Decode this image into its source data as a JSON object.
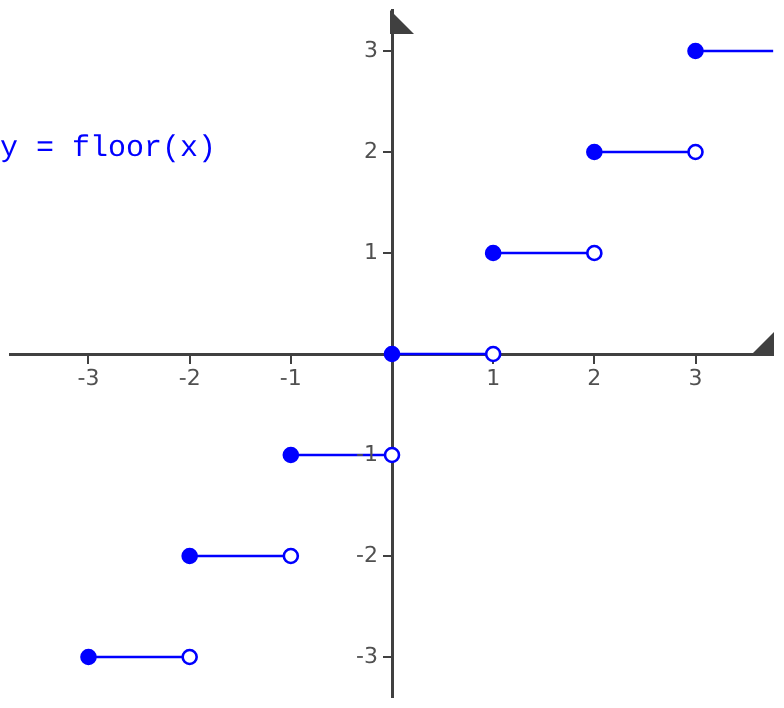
{
  "chart_data": {
    "type": "line",
    "xlim": [
      -3.77,
      3.77
    ],
    "ylim": [
      -3.4,
      3.4
    ],
    "xticks": [
      -3,
      -2,
      -1,
      1,
      2,
      3
    ],
    "yticks": [
      -3,
      -2,
      -1,
      1,
      2,
      3
    ],
    "grid": false,
    "legend": false,
    "marker": "circle",
    "line_style": "solid",
    "annotations": [
      "y = floor(x)"
    ],
    "series": [
      {
        "color": "#0000ff",
        "x": [
          -3,
          -2
        ],
        "values": [
          -3,
          -3
        ]
      },
      {
        "color": "#0000ff",
        "x": [
          -2,
          -1
        ],
        "values": [
          -2,
          -2
        ]
      },
      {
        "color": "#0000ff",
        "x": [
          -1,
          0
        ],
        "values": [
          -1,
          -1
        ]
      },
      {
        "color": "#0000ff",
        "x": [
          0,
          1
        ],
        "values": [
          0,
          0
        ]
      },
      {
        "color": "#0000ff",
        "x": [
          1,
          2
        ],
        "values": [
          1,
          1
        ]
      },
      {
        "color": "#0000ff",
        "x": [
          2,
          3
        ],
        "values": [
          2,
          2
        ]
      },
      {
        "color": "#0000ff",
        "x": [
          3,
          3.77
        ],
        "values": [
          3,
          3
        ]
      }
    ]
  }
}
